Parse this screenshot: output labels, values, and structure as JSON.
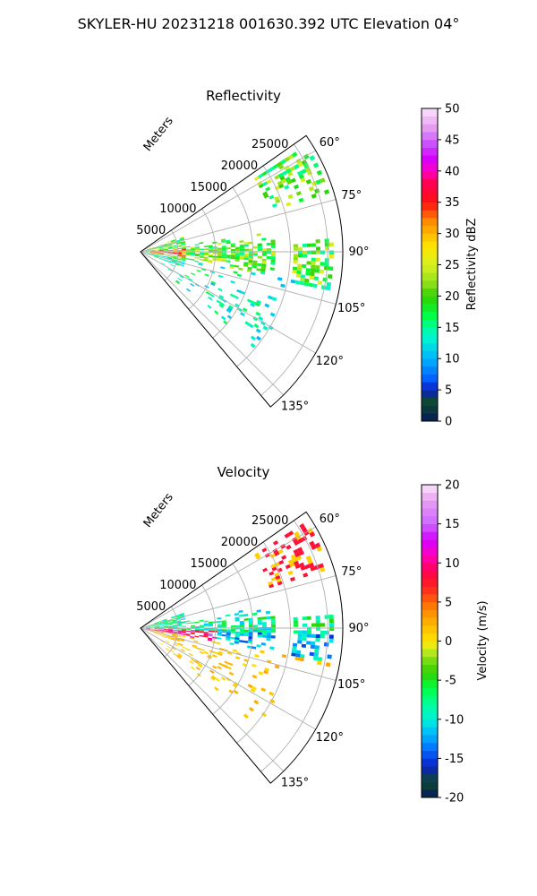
{
  "figure": {
    "title": "SKYLER-HU  20231218  001630.392 UTC Elevation 04°"
  },
  "chart_data": [
    {
      "type": "heatmap",
      "projection": "polar-sector",
      "title": "Reflectivity",
      "radial_label": "Meters",
      "radial_ticks": [
        5000,
        10000,
        15000,
        20000,
        25000
      ],
      "radial_range": [
        0,
        27000
      ],
      "angle_range": [
        55,
        140
      ],
      "angle_ticks": [
        60,
        75,
        90,
        105,
        120,
        135
      ],
      "angle_tick_labels": [
        "60°",
        "75°",
        "90°",
        "105°",
        "120°",
        "135°"
      ],
      "grid": true,
      "colorbar": {
        "label": "Reflectivity dBZ",
        "range": [
          0,
          50
        ],
        "ticks": [
          0,
          5,
          10,
          15,
          20,
          25,
          30,
          35,
          40,
          45,
          50
        ],
        "stops": [
          [
            0,
            "#061a5a"
          ],
          [
            3,
            "#0d4a2c"
          ],
          [
            5,
            "#0a1fc8"
          ],
          [
            7,
            "#0066ff"
          ],
          [
            10,
            "#00b4ff"
          ],
          [
            13,
            "#00f0d8"
          ],
          [
            15,
            "#00ff99"
          ],
          [
            17,
            "#00ff40"
          ],
          [
            20,
            "#33d000"
          ],
          [
            22,
            "#8ee01a"
          ],
          [
            25,
            "#d8f020"
          ],
          [
            28,
            "#ffe400"
          ],
          [
            30,
            "#ffb800"
          ],
          [
            32,
            "#ff8800"
          ],
          [
            35,
            "#ff1010"
          ],
          [
            38,
            "#ff0050"
          ],
          [
            40,
            "#ff00c0"
          ],
          [
            42,
            "#d400ff"
          ],
          [
            45,
            "#cc66ff"
          ],
          [
            47,
            "#e8a0f0"
          ],
          [
            50,
            "#fbe6fb"
          ]
        ]
      }
    },
    {
      "type": "heatmap",
      "projection": "polar-sector",
      "title": "Velocity",
      "radial_label": "Meters",
      "radial_ticks": [
        5000,
        10000,
        15000,
        20000,
        25000
      ],
      "radial_range": [
        0,
        27000
      ],
      "angle_range": [
        55,
        140
      ],
      "angle_ticks": [
        60,
        75,
        90,
        105,
        120,
        135
      ],
      "angle_tick_labels": [
        "60°",
        "75°",
        "90°",
        "105°",
        "120°",
        "135°"
      ],
      "grid": true,
      "colorbar": {
        "label": "Velocity (m/s)",
        "range": [
          -20,
          20
        ],
        "ticks": [
          -20,
          -15,
          -10,
          -5,
          0,
          5,
          10,
          15,
          20
        ],
        "stops": [
          [
            -20,
            "#061a5a"
          ],
          [
            -18,
            "#0d4a2c"
          ],
          [
            -16,
            "#0a1fc8"
          ],
          [
            -14,
            "#0066ff"
          ],
          [
            -12,
            "#00b4ff"
          ],
          [
            -10,
            "#00f0d8"
          ],
          [
            -8,
            "#00ff99"
          ],
          [
            -6,
            "#00ff40"
          ],
          [
            -4,
            "#33d000"
          ],
          [
            -2,
            "#8ee01a"
          ],
          [
            -1,
            "#d8f020"
          ],
          [
            0,
            "#ffe400"
          ],
          [
            2,
            "#ffb800"
          ],
          [
            4,
            "#ff8800"
          ],
          [
            7,
            "#ff2020"
          ],
          [
            9,
            "#ff0050"
          ],
          [
            11,
            "#ff00c0"
          ],
          [
            13,
            "#d400ff"
          ],
          [
            15,
            "#cc66ff"
          ],
          [
            18,
            "#e8a0f0"
          ],
          [
            20,
            "#fbe6fb"
          ]
        ]
      }
    }
  ]
}
